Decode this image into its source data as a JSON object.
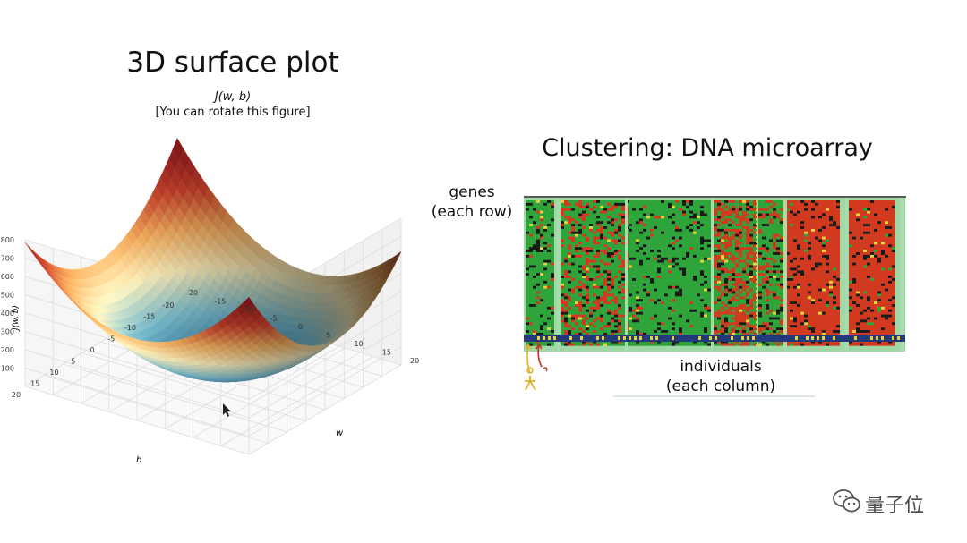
{
  "left_slide": {
    "title": "3D surface plot"
  },
  "right_slide": {
    "title": "Clustering: DNA microarray",
    "genes_label_1": "genes",
    "genes_label_2": "(each row)",
    "individuals_label_1": "individuals",
    "individuals_label_2": "(each column)"
  },
  "watermark": {
    "text": "量子位",
    "icon": "wechat-icon"
  },
  "chart_data": [
    {
      "type": "surface3d",
      "title": "J(w, b)",
      "subtitle": "[You can rotate this figure]",
      "zlabel": "J(w, b)",
      "xlabel": "w",
      "ylabel": "b",
      "z_ticks": [
        100,
        200,
        300,
        400,
        500,
        600,
        700,
        800
      ],
      "w_ticks": [
        -20,
        -15,
        -10,
        -5,
        0,
        5,
        10,
        15,
        20
      ],
      "b_ticks": [
        20,
        15,
        10,
        5,
        0,
        -5,
        -10,
        -15,
        -20
      ],
      "w_range": [
        -20,
        20
      ],
      "b_range": [
        -20,
        20
      ],
      "z_range": [
        0,
        800
      ],
      "colormap": [
        "#2e6f95",
        "#70b3c6",
        "#efe3b2",
        "#e6a257",
        "#c0402a",
        "#8e1b1b"
      ],
      "grid": true
    },
    {
      "type": "heatmap",
      "title": "Clustering: DNA microarray",
      "ylabel": "genes (each row)",
      "xlabel": "individuals (each column)",
      "colors": {
        "high": "#d23a20",
        "low": "#2fa43a",
        "neutral": "#1a1a1a",
        "marker": "#e6d23a"
      },
      "column_groups": [
        {
          "name": "group1",
          "dominant": "low"
        },
        {
          "name": "group2",
          "dominant": "mixed-low"
        },
        {
          "name": "group3",
          "dominant": "low"
        },
        {
          "name": "group4",
          "dominant": "mixed"
        },
        {
          "name": "group5",
          "dominant": "mixed-low"
        },
        {
          "name": "group6",
          "dominant": "high"
        },
        {
          "name": "group7",
          "dominant": "high"
        }
      ]
    }
  ]
}
